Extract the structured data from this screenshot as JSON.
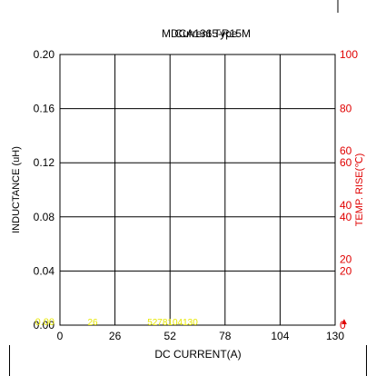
{
  "chart_data": {
    "type": "line",
    "title": "MDCA1365-R15M",
    "title_overlap": "Current Type",
    "xlabel": "DC CURRENT(A)",
    "ylabel": "INDUCTANCE (uH)",
    "y2label": "TEMP. RISE(℃)",
    "x_ticks": [
      "0",
      "26",
      "52",
      "78",
      "104",
      "130"
    ],
    "y_ticks": [
      "0.00",
      "0.04",
      "0.08",
      "0.12",
      "0.16",
      "0.20"
    ],
    "y2_ticks": [
      "0",
      "20",
      "40",
      "60",
      "80",
      "100"
    ],
    "y2_ghost_ticks": [
      "20",
      "40",
      "60"
    ],
    "xlim": [
      0,
      130
    ],
    "ylim": [
      0,
      0.2
    ],
    "y2lim": [
      0,
      100
    ],
    "grid": true,
    "yellow_labels": [
      "0.00",
      "26",
      "5278104130"
    ],
    "series": [],
    "colors": {
      "axis": "#000000",
      "right_axis": "#e00000",
      "yellow_text": "#e6e600"
    }
  }
}
